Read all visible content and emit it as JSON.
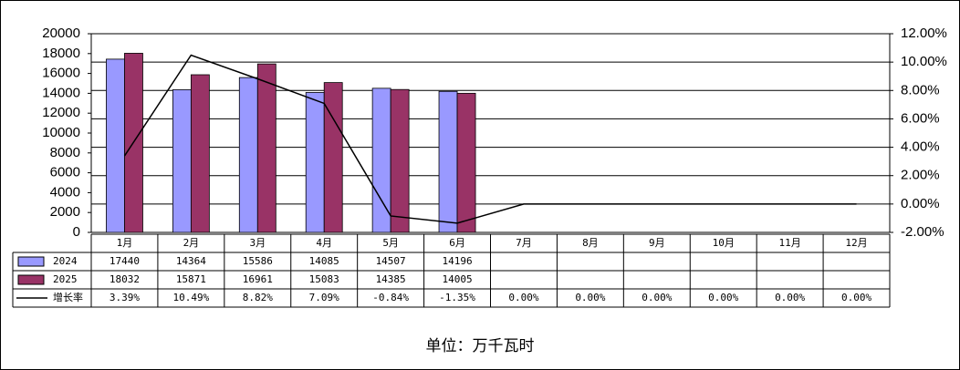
{
  "chart_data": {
    "type": "bar",
    "categories": [
      "1月",
      "2月",
      "3月",
      "4月",
      "5月",
      "6月",
      "7月",
      "8月",
      "9月",
      "10月",
      "11月",
      "12月"
    ],
    "series": [
      {
        "name": "2024",
        "type": "bar",
        "color": "#9999ff",
        "values": [
          17440,
          14364,
          15586,
          14085,
          14507,
          14196,
          null,
          null,
          null,
          null,
          null,
          null
        ]
      },
      {
        "name": "2025",
        "type": "bar",
        "color": "#993366",
        "values": [
          18032,
          15871,
          16961,
          15083,
          14385,
          14005,
          null,
          null,
          null,
          null,
          null,
          null
        ]
      },
      {
        "name": "增长率",
        "type": "line",
        "axis": "y2",
        "color": "#000000",
        "values": [
          3.39,
          10.49,
          8.82,
          7.09,
          -0.84,
          -1.35,
          0,
          0,
          0,
          0,
          0,
          0
        ],
        "value_labels": [
          "3.39%",
          "10.49%",
          "8.82%",
          "7.09%",
          "-0.84%",
          "-1.35%",
          "0.00%",
          "0.00%",
          "0.00%",
          "0.00%",
          "0.00%",
          "0.00%"
        ]
      }
    ],
    "ylim": [
      0,
      20000
    ],
    "yticks": [
      0,
      2000,
      4000,
      6000,
      8000,
      10000,
      12000,
      14000,
      16000,
      18000,
      20000
    ],
    "y2lim": [
      -2,
      12
    ],
    "y2ticks": [
      {
        "value": -2,
        "label": "-2.00%"
      },
      {
        "value": 0,
        "label": "0.00%"
      },
      {
        "value": 2,
        "label": "2.00%"
      },
      {
        "value": 4,
        "label": "4.00%"
      },
      {
        "value": 6,
        "label": "6.00%"
      },
      {
        "value": 8,
        "label": "8.00%"
      },
      {
        "value": 10,
        "label": "10.00%"
      },
      {
        "value": 12,
        "label": "12.00%"
      }
    ],
    "grid": "y2",
    "unit_note": "单位：万千瓦时"
  }
}
